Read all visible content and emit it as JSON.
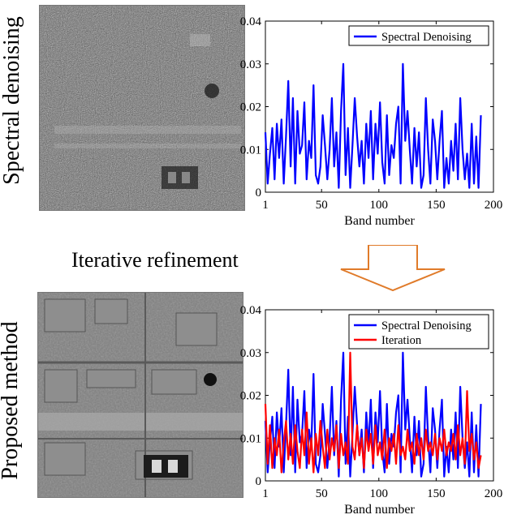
{
  "figure": {
    "row_labels": [
      "Spectral denoising",
      "Proposed method"
    ],
    "middle_text": "Iterative refinement",
    "arrow_color": "#e07b2a"
  },
  "chart_data": [
    {
      "type": "line",
      "title": "",
      "xlabel": "Band number",
      "ylabel": "",
      "xlim": [
        1,
        200
      ],
      "ylim": [
        0,
        0.04
      ],
      "xticks": [
        1,
        50,
        100,
        150,
        200
      ],
      "yticks": [
        0,
        0.01,
        0.02,
        0.03,
        0.04
      ],
      "ytick_labels": [
        "0",
        "0.01",
        "0.02",
        "0.03",
        "0.04"
      ],
      "legend": "top-right",
      "series": [
        {
          "name": "Spectral Denoising",
          "color": "#0000ff",
          "x_start": 1,
          "x_step": 2,
          "values": [
            0.014,
            0.002,
            0.009,
            0.015,
            0.003,
            0.016,
            0.008,
            0.017,
            0.002,
            0.013,
            0.026,
            0.006,
            0.022,
            0.002,
            0.019,
            0.009,
            0.011,
            0.021,
            0.003,
            0.012,
            0.008,
            0.025,
            0.004,
            0.002,
            0.006,
            0.018,
            0.011,
            0.003,
            0.01,
            0.022,
            0.006,
            0.014,
            0.001,
            0.019,
            0.03,
            0.004,
            0.015,
            0.001,
            0.011,
            0.022,
            0.013,
            0.006,
            0.012,
            0.002,
            0.016,
            0.008,
            0.019,
            0.003,
            0.016,
            0.009,
            0.021,
            0.007,
            0.002,
            0.018,
            0.004,
            0.011,
            0.008,
            0.016,
            0.02,
            0.002,
            0.03,
            0.012,
            0.019,
            0.01,
            0.002,
            0.015,
            0.006,
            0.014,
            0.001,
            0.004,
            0.022,
            0.01,
            0.002,
            0.017,
            0.012,
            0.003,
            0.012,
            0.019,
            0.001,
            0.008,
            0.002,
            0.012,
            0.005,
            0.016,
            0.003,
            0.022,
            0.01,
            0.003,
            0.009,
            0.001,
            0.016,
            0.002,
            0.013,
            0.001,
            0.018
          ]
        }
      ]
    },
    {
      "type": "line",
      "title": "",
      "xlabel": "Band number",
      "ylabel": "",
      "xlim": [
        1,
        200
      ],
      "ylim": [
        0,
        0.04
      ],
      "xticks": [
        1,
        50,
        100,
        150,
        200
      ],
      "yticks": [
        0,
        0.01,
        0.02,
        0.03,
        0.04
      ],
      "ytick_labels": [
        "0",
        "0.01",
        "0.02",
        "0.03",
        "0.04"
      ],
      "legend": "top-right",
      "series": [
        {
          "name": "Spectral Denoising",
          "color": "#0000ff",
          "x_start": 1,
          "x_step": 2,
          "values": [
            0.014,
            0.002,
            0.009,
            0.015,
            0.003,
            0.016,
            0.008,
            0.017,
            0.002,
            0.013,
            0.026,
            0.006,
            0.022,
            0.002,
            0.019,
            0.009,
            0.011,
            0.021,
            0.003,
            0.012,
            0.008,
            0.025,
            0.004,
            0.002,
            0.006,
            0.018,
            0.011,
            0.003,
            0.01,
            0.022,
            0.006,
            0.014,
            0.001,
            0.019,
            0.03,
            0.004,
            0.015,
            0.001,
            0.011,
            0.022,
            0.013,
            0.006,
            0.012,
            0.002,
            0.016,
            0.008,
            0.019,
            0.003,
            0.016,
            0.009,
            0.021,
            0.007,
            0.002,
            0.018,
            0.004,
            0.011,
            0.008,
            0.016,
            0.02,
            0.002,
            0.03,
            0.012,
            0.019,
            0.01,
            0.002,
            0.015,
            0.006,
            0.014,
            0.001,
            0.004,
            0.022,
            0.01,
            0.002,
            0.017,
            0.012,
            0.003,
            0.012,
            0.019,
            0.001,
            0.008,
            0.002,
            0.012,
            0.005,
            0.016,
            0.003,
            0.022,
            0.01,
            0.003,
            0.009,
            0.001,
            0.016,
            0.002,
            0.013,
            0.001,
            0.018
          ]
        },
        {
          "name": "Iteration",
          "color": "#ff0000",
          "x_start": 1,
          "x_step": 2,
          "values": [
            0.018,
            0.004,
            0.013,
            0.003,
            0.01,
            0.006,
            0.012,
            0.002,
            0.009,
            0.014,
            0.005,
            0.011,
            0.004,
            0.013,
            0.007,
            0.003,
            0.012,
            0.006,
            0.016,
            0.004,
            0.01,
            0.002,
            0.011,
            0.006,
            0.014,
            0.008,
            0.003,
            0.012,
            0.005,
            0.01,
            0.007,
            0.013,
            0.003,
            0.011,
            0.006,
            0.009,
            0.004,
            0.03,
            0.008,
            0.005,
            0.013,
            0.006,
            0.01,
            0.003,
            0.012,
            0.007,
            0.011,
            0.004,
            0.013,
            0.006,
            0.009,
            0.005,
            0.012,
            0.003,
            0.01,
            0.007,
            0.011,
            0.004,
            0.013,
            0.006,
            0.008,
            0.005,
            0.012,
            0.007,
            0.009,
            0.004,
            0.011,
            0.006,
            0.01,
            0.005,
            0.012,
            0.007,
            0.009,
            0.006,
            0.011,
            0.005,
            0.01,
            0.007,
            0.012,
            0.006,
            0.009,
            0.007,
            0.011,
            0.005,
            0.013,
            0.006,
            0.01,
            0.004,
            0.021,
            0.007,
            0.011,
            0.005,
            0.009,
            0.003,
            0.006
          ]
        }
      ]
    }
  ]
}
